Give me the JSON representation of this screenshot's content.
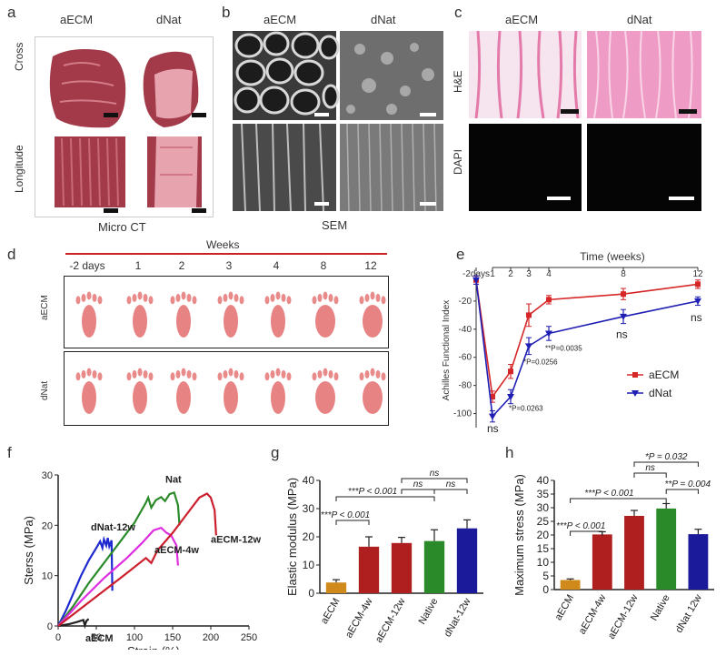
{
  "panels": {
    "a": {
      "letter": "a",
      "col1": "aECM",
      "col2": "dNat",
      "row1": "Cross",
      "row2": "Longitude",
      "caption": "Micro CT"
    },
    "b": {
      "letter": "b",
      "col1": "aECM",
      "col2": "dNat",
      "caption": "SEM"
    },
    "c": {
      "letter": "c",
      "col1": "aECM",
      "col2": "dNat",
      "row1": "H&E",
      "row2": "DAPI"
    },
    "d": {
      "letter": "d",
      "header": "Weeks",
      "columns": [
        "-2 days",
        "1",
        "2",
        "3",
        "4",
        "8",
        "12"
      ],
      "row1": "aECM",
      "row2": "dNat"
    },
    "e": {
      "letter": "e"
    },
    "f": {
      "letter": "f"
    },
    "g": {
      "letter": "g"
    },
    "h": {
      "letter": "h"
    }
  },
  "colors": {
    "aECM": "#d62728",
    "dNat": "#1f1fb4",
    "print": "#e05a5a",
    "tissue": "#a33a4a",
    "he": "#e88ab4"
  },
  "chart_data": [
    {
      "id": "e",
      "type": "line",
      "title": "Time (weeks)",
      "ylabel": "Achilles Functional Index",
      "x_ticks": [
        "-2days",
        "1",
        "2",
        "3",
        "4",
        "8",
        "12"
      ],
      "ylim": [
        -110,
        0
      ],
      "y_ticks": [
        -100,
        -80,
        -60,
        -40,
        -20
      ],
      "series": [
        {
          "name": "aECM",
          "color": "#d62728",
          "marker": "square",
          "x": [
            -2,
            1,
            2,
            3,
            4,
            8,
            12
          ],
          "y": [
            -5,
            -88,
            -70,
            -30,
            -19,
            -15,
            -8
          ],
          "err": [
            3,
            4,
            5,
            8,
            3,
            4,
            3
          ]
        },
        {
          "name": "dNat",
          "color": "#1f1fb4",
          "marker": "triangle-down",
          "x": [
            -2,
            1,
            2,
            3,
            4,
            8,
            12
          ],
          "y": [
            -5,
            -102,
            -88,
            -52,
            -43,
            -31,
            -20
          ],
          "err": [
            3,
            4,
            5,
            6,
            5,
            5,
            3
          ]
        }
      ],
      "annotations": [
        {
          "text": "ns",
          "x": 1
        },
        {
          "text": "*P=0.0263",
          "x": 2
        },
        {
          "text": "*P=0.0256",
          "x": 3
        },
        {
          "text": "**P=0.0035",
          "x": 4
        },
        {
          "text": "ns",
          "x": 8
        },
        {
          "text": "ns",
          "x": 12
        }
      ],
      "legend": "right"
    },
    {
      "id": "f",
      "type": "line",
      "xlabel": "Strain (%)",
      "ylabel": "Sterss (MPa)",
      "xlim": [
        0,
        250
      ],
      "ylim": [
        0,
        30
      ],
      "x_ticks": [
        0,
        50,
        100,
        150,
        200,
        250
      ],
      "y_ticks": [
        0,
        10,
        20,
        30
      ],
      "series": [
        {
          "name": "aECM",
          "color": "#222222",
          "points": [
            [
              0,
              0
            ],
            [
              15,
              0.4
            ],
            [
              25,
              0.8
            ],
            [
              33,
              1.2
            ],
            [
              35,
              0.1
            ],
            [
              37,
              1.0
            ],
            [
              40,
              1.4
            ]
          ]
        },
        {
          "name": "dNat-12w",
          "color": "#1e2ad0",
          "points": [
            [
              0,
              0
            ],
            [
              10,
              3
            ],
            [
              20,
              6.5
            ],
            [
              30,
              10
            ],
            [
              40,
              13
            ],
            [
              50,
              15.5
            ],
            [
              55,
              16.8
            ],
            [
              58,
              15.5
            ],
            [
              60,
              17.2
            ],
            [
              63,
              16
            ],
            [
              65,
              17.5
            ],
            [
              67,
              15.8
            ],
            [
              70,
              17
            ],
            [
              71,
              7
            ]
          ]
        },
        {
          "name": "Nat",
          "color": "#2a8a2a",
          "points": [
            [
              0,
              0
            ],
            [
              20,
              4
            ],
            [
              40,
              8.5
            ],
            [
              60,
              12.5
            ],
            [
              80,
              16.5
            ],
            [
              100,
              20.5
            ],
            [
              115,
              24.5
            ],
            [
              118,
              25.5
            ],
            [
              122,
              23.5
            ],
            [
              128,
              25
            ],
            [
              135,
              25.6
            ],
            [
              140,
              24.8
            ],
            [
              146,
              26.2
            ],
            [
              152,
              26.5
            ],
            [
              157,
              24
            ],
            [
              159,
              20
            ]
          ]
        },
        {
          "name": "aECM-4w",
          "color": "#dd2ee0",
          "points": [
            [
              0,
              0
            ],
            [
              30,
              5
            ],
            [
              60,
              9.5
            ],
            [
              90,
              13.5
            ],
            [
              110,
              16.5
            ],
            [
              125,
              19
            ],
            [
              135,
              19.5
            ],
            [
              142,
              18.5
            ],
            [
              148,
              18
            ],
            [
              155,
              16
            ],
            [
              157,
              12
            ]
          ]
        },
        {
          "name": "aECM-12w",
          "color": "#cc1f2e",
          "points": [
            [
              0,
              0
            ],
            [
              30,
              3.5
            ],
            [
              60,
              7
            ],
            [
              90,
              10.5
            ],
            [
              115,
              13.5
            ],
            [
              122,
              12.5
            ],
            [
              130,
              15
            ],
            [
              150,
              18.5
            ],
            [
              170,
              22.5
            ],
            [
              185,
              25.5
            ],
            [
              195,
              26.3
            ],
            [
              200,
              25.5
            ],
            [
              205,
              23
            ],
            [
              207,
              18
            ]
          ]
        }
      ],
      "labels": [
        "aECM",
        "dNat-12w",
        "Nat",
        "aECM-4w",
        "aECM-12w"
      ]
    },
    {
      "id": "g",
      "type": "bar",
      "ylabel": "Elastic modulus (MPa)",
      "categories": [
        "aECM",
        "aECM-4w",
        "aECM-12w",
        "Native",
        "dNat-12w"
      ],
      "values": [
        3.8,
        16.5,
        17.8,
        18.5,
        23
      ],
      "errors": [
        1,
        3.5,
        2,
        4,
        3
      ],
      "bar_colors": [
        "#d08a1c",
        "#b01f1f",
        "#b01f1f",
        "#2a8a2a",
        "#1a1a9a"
      ],
      "ylim": [
        0,
        40
      ],
      "y_ticks": [
        0,
        10,
        20,
        30,
        40
      ],
      "significance": [
        {
          "from": 0,
          "to": 1,
          "text": "***P < 0.001"
        },
        {
          "from": 0,
          "to": 3,
          "text": "***P < 0.001"
        },
        {
          "from": 2,
          "to": 3,
          "text": "ns"
        },
        {
          "from": 3,
          "to": 4,
          "text": "ns"
        },
        {
          "from": 2,
          "to": 4,
          "text": "ns"
        }
      ]
    },
    {
      "id": "h",
      "type": "bar",
      "ylabel": "Maximum stress (MPa)",
      "categories": [
        "aECM",
        "aECM-4w",
        "aECM-12w",
        "Native",
        "dNat 12w"
      ],
      "values": [
        3.5,
        20.2,
        27,
        29.7,
        20.3
      ],
      "errors": [
        0.4,
        1,
        2,
        1.8,
        1.8
      ],
      "bar_colors": [
        "#d08a1c",
        "#b01f1f",
        "#b01f1f",
        "#2a8a2a",
        "#1a1a9a"
      ],
      "ylim": [
        0,
        40
      ],
      "y_ticks": [
        0,
        5,
        10,
        15,
        20,
        25,
        30,
        35,
        40
      ],
      "significance": [
        {
          "from": 0,
          "to": 1,
          "text": "***P < 0.001"
        },
        {
          "from": 0,
          "to": 3,
          "text": "***P < 0.001"
        },
        {
          "from": 3,
          "to": 4,
          "text": "**P = 0.004"
        },
        {
          "from": 2,
          "to": 3,
          "text": "ns"
        },
        {
          "from": 2,
          "to": 4,
          "text": "*P = 0.032"
        }
      ]
    }
  ]
}
